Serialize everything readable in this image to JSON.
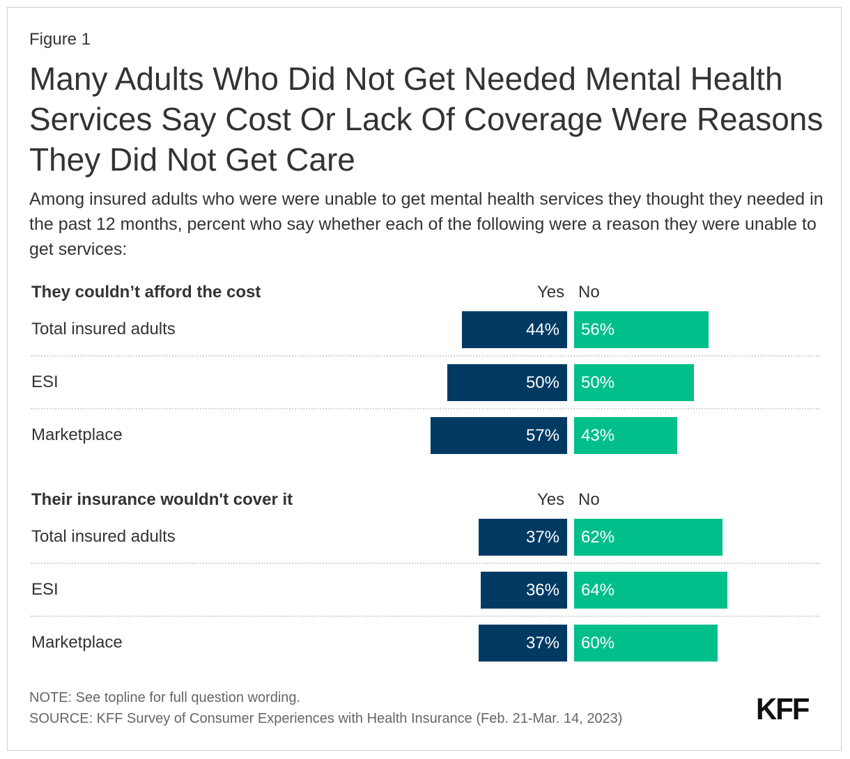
{
  "figure_label": "Figure 1",
  "title": "Many Adults Who Did Not Get Needed Mental Health Services Say Cost Or Lack Of Coverage Were Reasons They Did Not Get Care",
  "subtitle": "Among insured adults who were were unable to get mental health services they thought they needed in the past 12 months, percent who say whether each of the following were a reason they were unable to get services:",
  "colors": {
    "yes": "#003a63",
    "no": "#00bf8a"
  },
  "chart_data": {
    "type": "bar",
    "orientation": "horizontal-diverging",
    "series_labels": {
      "yes": "Yes",
      "no": "No"
    },
    "groups": [
      {
        "title": "They couldn’t afford the cost",
        "rows": [
          {
            "label": "Total insured adults",
            "yes": 44,
            "no": 56
          },
          {
            "label": "ESI",
            "yes": 50,
            "no": 50
          },
          {
            "label": "Marketplace",
            "yes": 57,
            "no": 43
          }
        ]
      },
      {
        "title": "Their insurance wouldn't cover it",
        "rows": [
          {
            "label": "Total insured adults",
            "yes": 37,
            "no": 62
          },
          {
            "label": "ESI",
            "yes": 36,
            "no": 64
          },
          {
            "label": "Marketplace",
            "yes": 37,
            "no": 60
          }
        ]
      }
    ]
  },
  "footer": {
    "note": "NOTE: See topline for full question wording.",
    "source": "SOURCE: KFF Survey of Consumer Experiences with Health Insurance (Feb. 21-Mar. 14, 2023)",
    "logo": "KFF"
  }
}
